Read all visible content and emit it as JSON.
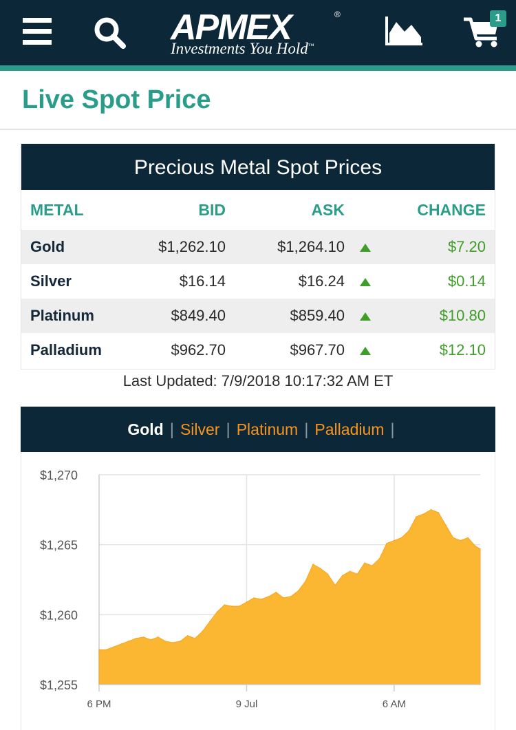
{
  "header": {
    "menu_icon": "hamburger-menu-icon",
    "search_icon": "search-icon",
    "logo_text": "APMEX",
    "logo_registered": "®",
    "logo_tagline": "Investments You Hold",
    "logo_tagline_mark": "™",
    "chart_icon": "area-chart-icon",
    "cart_icon": "shopping-cart-icon",
    "cart_count": "1"
  },
  "page_title": "Live Spot Price",
  "spot_table": {
    "title": "Precious Metal Spot Prices",
    "columns": {
      "metal": "METAL",
      "bid": "BID",
      "ask": "ASK",
      "change": "CHANGE"
    },
    "rows": [
      {
        "metal": "Gold",
        "bid": "$1,262.10",
        "ask": "$1,264.10",
        "direction": "up",
        "change": "$7.20"
      },
      {
        "metal": "Silver",
        "bid": "$16.14",
        "ask": "$16.24",
        "direction": "up",
        "change": "$0.14"
      },
      {
        "metal": "Platinum",
        "bid": "$849.40",
        "ask": "$859.40",
        "direction": "up",
        "change": "$10.80"
      },
      {
        "metal": "Palladium",
        "bid": "$962.70",
        "ask": "$967.70",
        "direction": "up",
        "change": "$12.10"
      }
    ],
    "last_updated": "Last Updated: 7/9/2018 10:17:32 AM ET"
  },
  "chart_tabs": [
    {
      "label": "Gold",
      "active": true
    },
    {
      "label": "Silver",
      "active": false
    },
    {
      "label": "Platinum",
      "active": false
    },
    {
      "label": "Palladium",
      "active": false
    }
  ],
  "colors": {
    "navy": "#0c2738",
    "teal": "#2a9d8a",
    "orange": "#f7941d",
    "gain_green": "#3f9d29",
    "chart_fill": "#fbb731"
  },
  "chart_data": {
    "type": "area",
    "title": "",
    "xlabel": "",
    "ylabel": "",
    "ylim": [
      1255,
      1270
    ],
    "yticks": [
      1270,
      1265,
      1260,
      1255
    ],
    "ytick_labels": [
      "$1,270",
      "$1,265",
      "$1,260",
      "$1,255"
    ],
    "xlim": [
      0,
      15.5
    ],
    "xticks": [
      0.0,
      6.0,
      12.0
    ],
    "xtick_labels": [
      "6 PM",
      "9 Jul",
      "6 AM"
    ],
    "x_unit": "hours after 6 PM, 8 Jul 2018",
    "grid": true,
    "legend": "none",
    "series": [
      {
        "values": [
          [
            0.0,
            1257.5
          ],
          [
            0.3,
            1257.5
          ],
          [
            0.6,
            1257.7
          ],
          [
            0.9,
            1257.9
          ],
          [
            1.2,
            1258.1
          ],
          [
            1.5,
            1258.3
          ],
          [
            1.8,
            1258.4
          ],
          [
            2.1,
            1258.2
          ],
          [
            2.4,
            1258.4
          ],
          [
            2.7,
            1258.1
          ],
          [
            3.0,
            1258.0
          ],
          [
            3.3,
            1258.1
          ],
          [
            3.6,
            1258.5
          ],
          [
            3.9,
            1258.3
          ],
          [
            4.2,
            1258.8
          ],
          [
            4.5,
            1259.5
          ],
          [
            4.8,
            1260.2
          ],
          [
            5.1,
            1260.7
          ],
          [
            5.4,
            1260.6
          ],
          [
            5.7,
            1260.6
          ],
          [
            6.0,
            1260.9
          ],
          [
            6.3,
            1261.2
          ],
          [
            6.6,
            1261.1
          ],
          [
            6.9,
            1261.3
          ],
          [
            7.2,
            1261.6
          ],
          [
            7.5,
            1261.2
          ],
          [
            7.8,
            1261.3
          ],
          [
            8.1,
            1261.7
          ],
          [
            8.4,
            1262.4
          ],
          [
            8.7,
            1263.6
          ],
          [
            9.0,
            1263.3
          ],
          [
            9.3,
            1262.9
          ],
          [
            9.6,
            1262.1
          ],
          [
            9.9,
            1262.8
          ],
          [
            10.2,
            1263.1
          ],
          [
            10.5,
            1262.9
          ],
          [
            10.8,
            1263.7
          ],
          [
            11.1,
            1263.5
          ],
          [
            11.4,
            1264.0
          ],
          [
            11.7,
            1265.1
          ],
          [
            12.0,
            1265.3
          ],
          [
            12.3,
            1265.5
          ],
          [
            12.6,
            1266.0
          ],
          [
            12.9,
            1267.0
          ],
          [
            13.2,
            1267.2
          ],
          [
            13.5,
            1267.5
          ],
          [
            13.8,
            1267.3
          ],
          [
            14.1,
            1266.4
          ],
          [
            14.4,
            1265.5
          ],
          [
            14.7,
            1265.3
          ],
          [
            15.0,
            1265.5
          ],
          [
            15.3,
            1264.9
          ],
          [
            15.5,
            1264.7
          ]
        ]
      }
    ]
  }
}
